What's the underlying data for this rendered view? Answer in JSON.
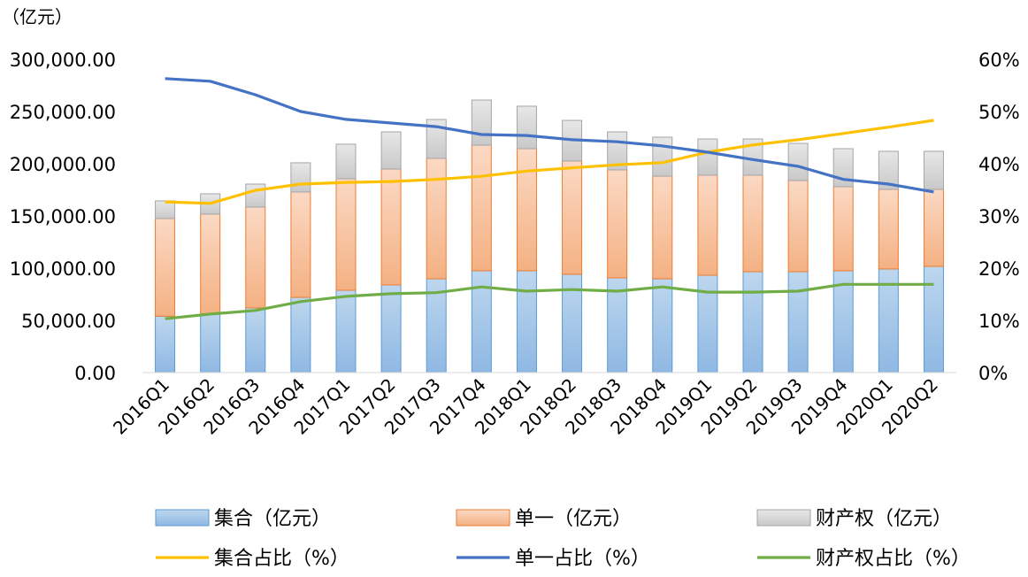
{
  "chart_data": {
    "type": "bar+line",
    "unit_label": "（亿元）",
    "categories": [
      "2016Q1",
      "2016Q2",
      "2016Q3",
      "2016Q4",
      "2017Q1",
      "2017Q2",
      "2017Q3",
      "2017Q4",
      "2018Q1",
      "2018Q2",
      "2018Q3",
      "2018Q4",
      "2019Q1",
      "2019Q2",
      "2019Q3",
      "2019Q4",
      "2020Q1",
      "2020Q2"
    ],
    "left_axis": {
      "ylim": [
        0,
        300000
      ],
      "ticks": [
        "0.00",
        "50,000.00",
        "100,000.00",
        "150,000.00",
        "200,000.00",
        "250,000.00",
        "300,000.00"
      ]
    },
    "right_axis": {
      "ylim": [
        0,
        60
      ],
      "ticks": [
        "0%",
        "10%",
        "20%",
        "30%",
        "40%",
        "50%",
        "60%"
      ]
    },
    "bar_series": [
      {
        "name": "集合（亿元）",
        "color": "#9DC3E6",
        "edge": "#5B9BD5",
        "values": [
          54000,
          56000,
          61900,
          72000,
          78800,
          83900,
          89800,
          97500,
          97500,
          94100,
          90700,
          89800,
          93200,
          96600,
          96600,
          97500,
          99200,
          101700
        ]
      },
      {
        "name": "单一（亿元）",
        "color": "#F8CBAD",
        "edge": "#ED7D31",
        "values": [
          93500,
          95700,
          96600,
          100900,
          106800,
          111000,
          115300,
          120300,
          116900,
          108500,
          103400,
          98300,
          95800,
          92400,
          87300,
          80500,
          76200,
          73700
        ]
      },
      {
        "name": "财产权（亿元）",
        "color": "#D9D9D9",
        "edge": "#A5A5A5",
        "values": [
          16900,
          19500,
          22000,
          28000,
          33100,
          35600,
          37300,
          43200,
          40700,
          38900,
          36400,
          37300,
          34700,
          34700,
          35600,
          36400,
          36500,
          36500
        ]
      }
    ],
    "line_series": [
      {
        "name": "集合占比（%）",
        "color": "#FFC000",
        "values": [
          32.7,
          32.4,
          34.9,
          36.1,
          36.4,
          36.6,
          37.0,
          37.6,
          38.6,
          39.2,
          39.8,
          40.2,
          42.2,
          43.6,
          44.6,
          45.8,
          47.0,
          48.3
        ]
      },
      {
        "name": "单一占比（%）",
        "color": "#4472C4",
        "values": [
          56.3,
          55.8,
          53.2,
          50.0,
          48.5,
          47.8,
          47.1,
          45.6,
          45.4,
          44.6,
          44.2,
          43.4,
          42.2,
          40.8,
          39.5,
          37.0,
          36.1,
          34.6
        ]
      },
      {
        "name": "财产权占比（%）",
        "color": "#70AD47",
        "values": [
          10.3,
          11.2,
          11.9,
          13.6,
          14.6,
          15.1,
          15.3,
          16.4,
          15.6,
          15.9,
          15.6,
          16.4,
          15.4,
          15.4,
          15.6,
          16.9,
          16.9,
          16.9
        ]
      }
    ],
    "legend_position": "bottom",
    "grid": false
  }
}
